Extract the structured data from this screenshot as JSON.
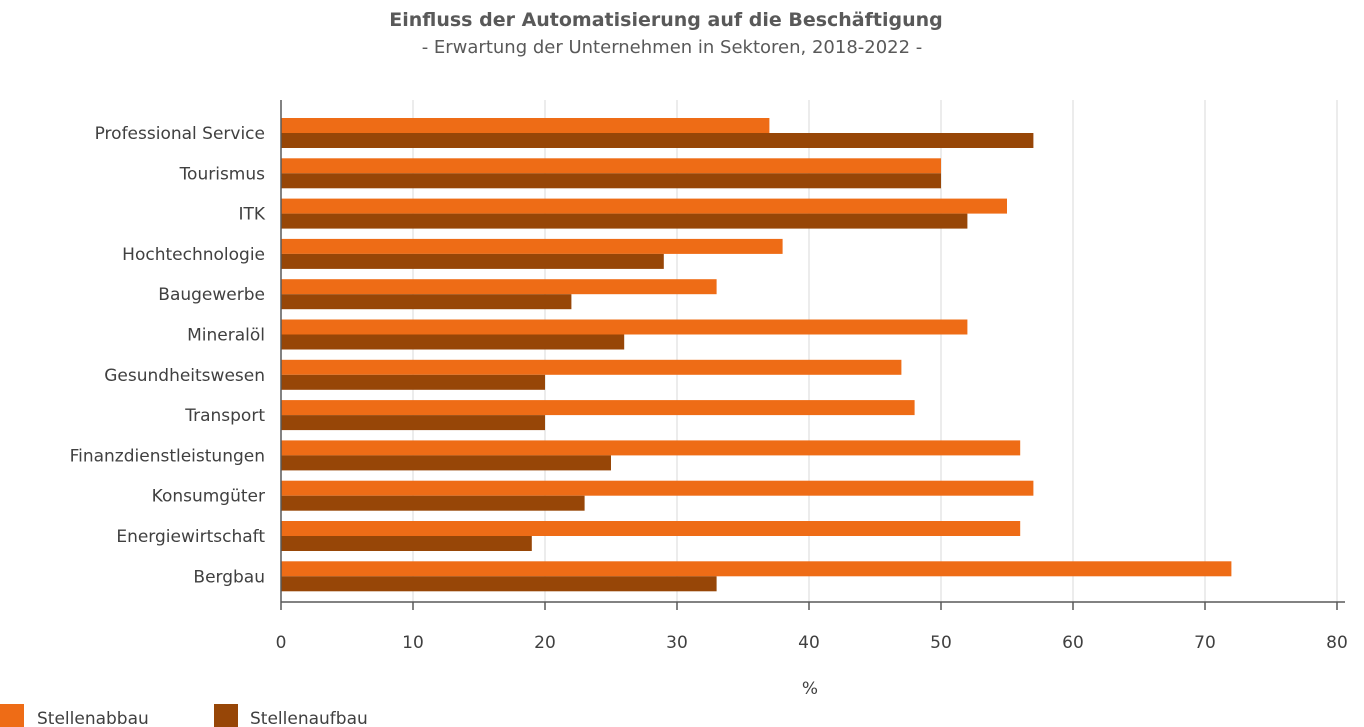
{
  "chart_data": {
    "type": "bar",
    "orientation": "horizontal",
    "title": "Einfluss der Automatisierung auf die Beschäftigung",
    "subtitle": "- Erwartung der Unternehmen in Sektoren, 2018-2022 -",
    "xlabel": "%",
    "ylabel": "",
    "xlim": [
      0,
      80
    ],
    "xticks": [
      0,
      10,
      20,
      30,
      40,
      50,
      60,
      70,
      80
    ],
    "grid": true,
    "legend_position": "bottom-left",
    "categories": [
      "Professional Service",
      "Tourismus",
      "ITK",
      "Hochtechnologie",
      "Baugewerbe",
      "Mineralöl",
      "Gesundheitswesen",
      "Transport",
      "Finanzdienstleistungen",
      "Konsumgüter",
      "Energiewirtschaft",
      "Bergbau"
    ],
    "series": [
      {
        "name": "Stellenabbau",
        "color": "#ee6c16",
        "values": [
          37,
          50,
          55,
          38,
          33,
          52,
          47,
          48,
          56,
          57,
          56,
          72
        ]
      },
      {
        "name": "Stellenaufbau",
        "color": "#974607",
        "values": [
          57,
          50,
          52,
          29,
          22,
          26,
          20,
          20,
          25,
          23,
          19,
          33
        ]
      }
    ]
  }
}
